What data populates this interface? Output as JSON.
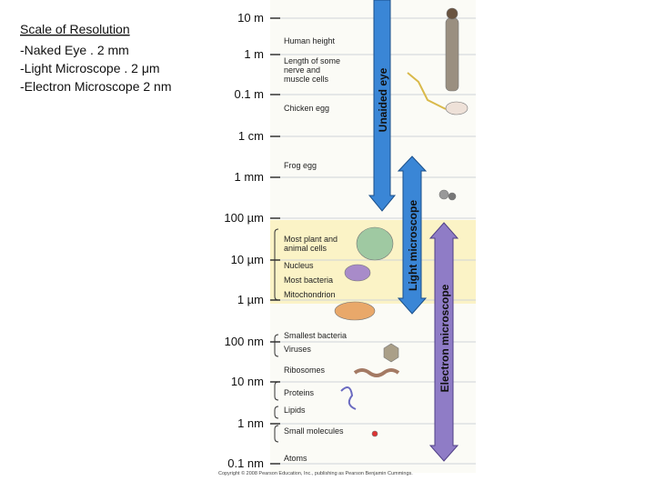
{
  "notes": {
    "title": "Scale of Resolution",
    "lines": [
      "-Naked Eye . 2 mm",
      "-Light Microscope . 2 μm",
      "-Electron Microscope 2 nm"
    ]
  },
  "scale": [
    "10 m",
    "1 m",
    "0.1 m",
    "1 cm",
    "1 mm",
    "100 µm",
    "10 µm",
    "1 µm",
    "100 nm",
    "10 nm",
    "1 nm",
    "0.1 nm"
  ],
  "items": [
    "Human height",
    "Length of some nerve and muscle cells",
    "Chicken egg",
    "Frog egg",
    "Most plant and animal cells",
    "Nucleus",
    "Most bacteria",
    "Mitochondrion",
    "Smallest bacteria",
    "Viruses",
    "Ribosomes",
    "Proteins",
    "Lipids",
    "Small molecules",
    "Atoms"
  ],
  "arrows": [
    "Unaided eye",
    "Light microscope",
    "Electron microscope"
  ],
  "copyright": "Copyright © 2008 Pearson Education, Inc., publishing as Pearson Benjamin Cummings."
}
